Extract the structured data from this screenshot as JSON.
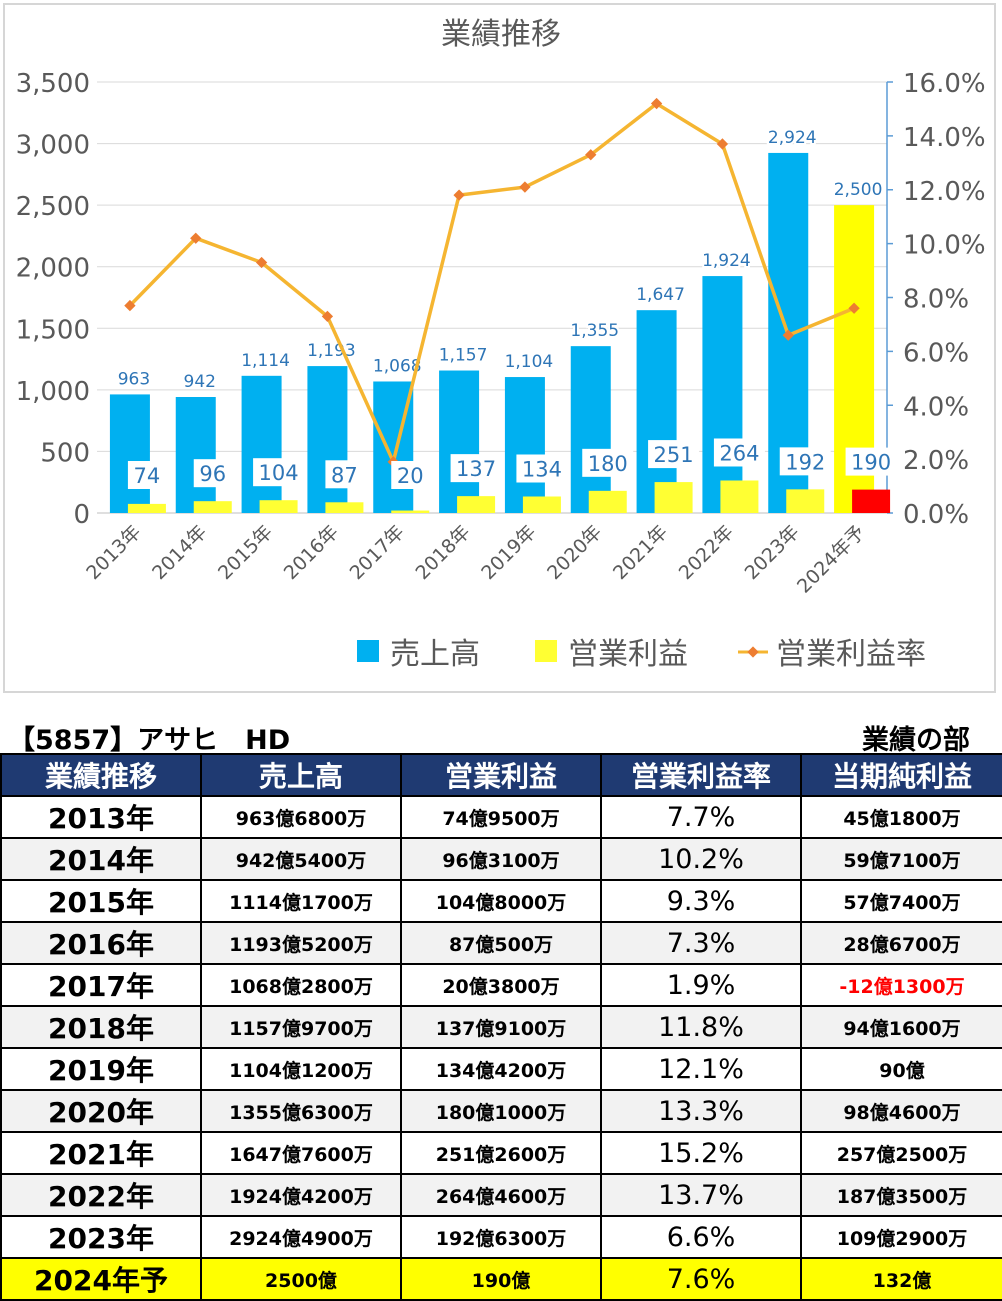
{
  "chart_data": {
    "type": "bar",
    "title": "業績推移",
    "categories": [
      "2013年",
      "2014年",
      "2015年",
      "2016年",
      "2017年",
      "2018年",
      "2019年",
      "2020年",
      "2021年",
      "2022年",
      "2023年",
      "2024年予"
    ],
    "series": [
      {
        "name": "売上高",
        "axis": "left",
        "color": "#00b0f0",
        "values": [
          963,
          942,
          1114,
          1193,
          1068,
          1157,
          1104,
          1355,
          1647,
          1924,
          2924,
          2500
        ],
        "last_color": "#ffff00"
      },
      {
        "name": "営業利益",
        "axis": "left",
        "color": "#ffff33",
        "values": [
          74,
          96,
          104,
          87,
          20,
          137,
          134,
          180,
          251,
          264,
          192,
          190
        ],
        "last_color": "#ff0000"
      },
      {
        "name": "営業利益率",
        "type": "line",
        "axis": "right",
        "color": "#f5b531",
        "marker_color": "#ed7d31",
        "values": [
          7.7,
          10.2,
          9.3,
          7.3,
          1.9,
          11.8,
          12.1,
          13.3,
          15.2,
          13.7,
          6.6,
          7.6
        ]
      }
    ],
    "ylim": [
      0,
      3500
    ],
    "y_ticks": [
      "0",
      "500",
      "1,000",
      "1,500",
      "2,000",
      "2,500",
      "3,000",
      "3,500"
    ],
    "y2lim": [
      0,
      16
    ],
    "y2_ticks": [
      "0.0%",
      "2.0%",
      "4.0%",
      "6.0%",
      "8.0%",
      "10.0%",
      "12.0%",
      "14.0%",
      "16.0%"
    ],
    "sales_labels": [
      "963",
      "942",
      "1,114",
      "1,193",
      "1,068",
      "1,157",
      "1,104",
      "1,355",
      "1,647",
      "1,924",
      "2,924",
      "2,500"
    ],
    "op_labels": [
      "74",
      "96",
      "104",
      "87",
      "20",
      "137",
      "134",
      "180",
      "251",
      "264",
      "192",
      "190"
    ],
    "grid": true,
    "legend_position": "bottom-right"
  },
  "caption": {
    "company": "【5857】アサヒ　HD",
    "section": "業績の部"
  },
  "table": {
    "headers": [
      "業績推移",
      "売上高",
      "営業利益",
      "営業利益率",
      "当期純利益"
    ],
    "rows": [
      {
        "year": "2013年",
        "sales": "963億6800万",
        "op": "74億9500万",
        "rate": "7.7%",
        "net": "45億1800万"
      },
      {
        "year": "2014年",
        "sales": "942億5400万",
        "op": "96億3100万",
        "rate": "10.2%",
        "net": "59億7100万"
      },
      {
        "year": "2015年",
        "sales": "1114億1700万",
        "op": "104億8000万",
        "rate": "9.3%",
        "net": "57億7400万"
      },
      {
        "year": "2016年",
        "sales": "1193億5200万",
        "op": "87億500万",
        "rate": "7.3%",
        "net": "28億6700万"
      },
      {
        "year": "2017年",
        "sales": "1068億2800万",
        "op": "20億3800万",
        "rate": "1.9%",
        "net": "-12億1300万"
      },
      {
        "year": "2018年",
        "sales": "1157億9700万",
        "op": "137億9100万",
        "rate": "11.8%",
        "net": "94億1600万"
      },
      {
        "year": "2019年",
        "sales": "1104億1200万",
        "op": "134億4200万",
        "rate": "12.1%",
        "net": "90億"
      },
      {
        "year": "2020年",
        "sales": "1355億6300万",
        "op": "180億1000万",
        "rate": "13.3%",
        "net": "98億4600万"
      },
      {
        "year": "2021年",
        "sales": "1647億7600万",
        "op": "251億2600万",
        "rate": "15.2%",
        "net": "257億2500万"
      },
      {
        "year": "2022年",
        "sales": "1924億4200万",
        "op": "264億4600万",
        "rate": "13.7%",
        "net": "187億3500万"
      },
      {
        "year": "2023年",
        "sales": "2924億4900万",
        "op": "192億6300万",
        "rate": "6.6%",
        "net": "109億2900万"
      },
      {
        "year": "2024年予",
        "sales": "2500億",
        "op": "190億",
        "rate": "7.6%",
        "net": "132億"
      }
    ],
    "negative_color": "#ff0000",
    "forecast_color": "#ffff00",
    "header_color": "#1f3a72"
  }
}
